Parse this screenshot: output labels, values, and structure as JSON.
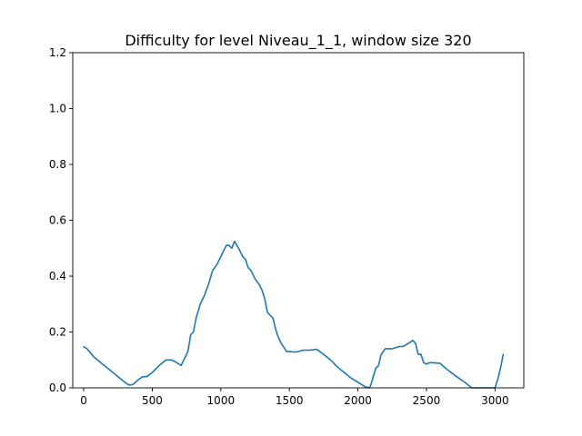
{
  "chart_data": {
    "type": "line",
    "title": "Difficulty for level Niveau_1_1, window size 320",
    "xlabel": "",
    "ylabel": "",
    "xlim": [
      -80,
      3210
    ],
    "ylim": [
      0,
      1.2
    ],
    "xticks": [
      0,
      500,
      1000,
      1500,
      2000,
      2500,
      3000
    ],
    "yticks": [
      0.0,
      0.2,
      0.4,
      0.6,
      0.8,
      1.0,
      1.2
    ],
    "grid": false,
    "legend": "none",
    "series": [
      {
        "color": "#1f77b4",
        "x": [
          0,
          25,
          50,
          75,
          100,
          150,
          200,
          250,
          300,
          330,
          360,
          400,
          430,
          460,
          500,
          550,
          600,
          640,
          680,
          710,
          730,
          760,
          780,
          800,
          820,
          850,
          880,
          910,
          940,
          970,
          1000,
          1020,
          1040,
          1060,
          1080,
          1100,
          1130,
          1160,
          1180,
          1200,
          1220,
          1250,
          1280,
          1300,
          1320,
          1340,
          1360,
          1380,
          1400,
          1420,
          1440,
          1460,
          1480,
          1500,
          1550,
          1600,
          1650,
          1700,
          1750,
          1800,
          1850,
          1900,
          1950,
          2000,
          2050,
          2080,
          2090,
          2100,
          2130,
          2150,
          2170,
          2200,
          2250,
          2300,
          2330,
          2370,
          2400,
          2420,
          2440,
          2460,
          2480,
          2500,
          2520,
          2540,
          2600,
          2640,
          2680,
          2720,
          2780,
          2830,
          2860,
          2900,
          2950,
          3000,
          3020,
          3040,
          3060
        ],
        "y": [
          0.147,
          0.14,
          0.125,
          0.11,
          0.1,
          0.08,
          0.06,
          0.04,
          0.02,
          0.01,
          0.012,
          0.03,
          0.04,
          0.04,
          0.055,
          0.08,
          0.1,
          0.1,
          0.09,
          0.08,
          0.1,
          0.13,
          0.19,
          0.2,
          0.25,
          0.3,
          0.33,
          0.37,
          0.42,
          0.44,
          0.47,
          0.49,
          0.51,
          0.51,
          0.5,
          0.525,
          0.5,
          0.47,
          0.46,
          0.43,
          0.42,
          0.39,
          0.37,
          0.35,
          0.32,
          0.27,
          0.26,
          0.25,
          0.21,
          0.18,
          0.16,
          0.145,
          0.13,
          0.13,
          0.128,
          0.135,
          0.135,
          0.138,
          0.12,
          0.1,
          0.075,
          0.055,
          0.035,
          0.02,
          0.005,
          0.0,
          0.005,
          0.02,
          0.07,
          0.08,
          0.12,
          0.14,
          0.14,
          0.148,
          0.148,
          0.16,
          0.17,
          0.16,
          0.12,
          0.12,
          0.09,
          0.085,
          0.09,
          0.09,
          0.088,
          0.07,
          0.055,
          0.04,
          0.02,
          0.0,
          0.0,
          0.0,
          0.0,
          0.0,
          0.03,
          0.07,
          0.12
        ]
      }
    ]
  }
}
